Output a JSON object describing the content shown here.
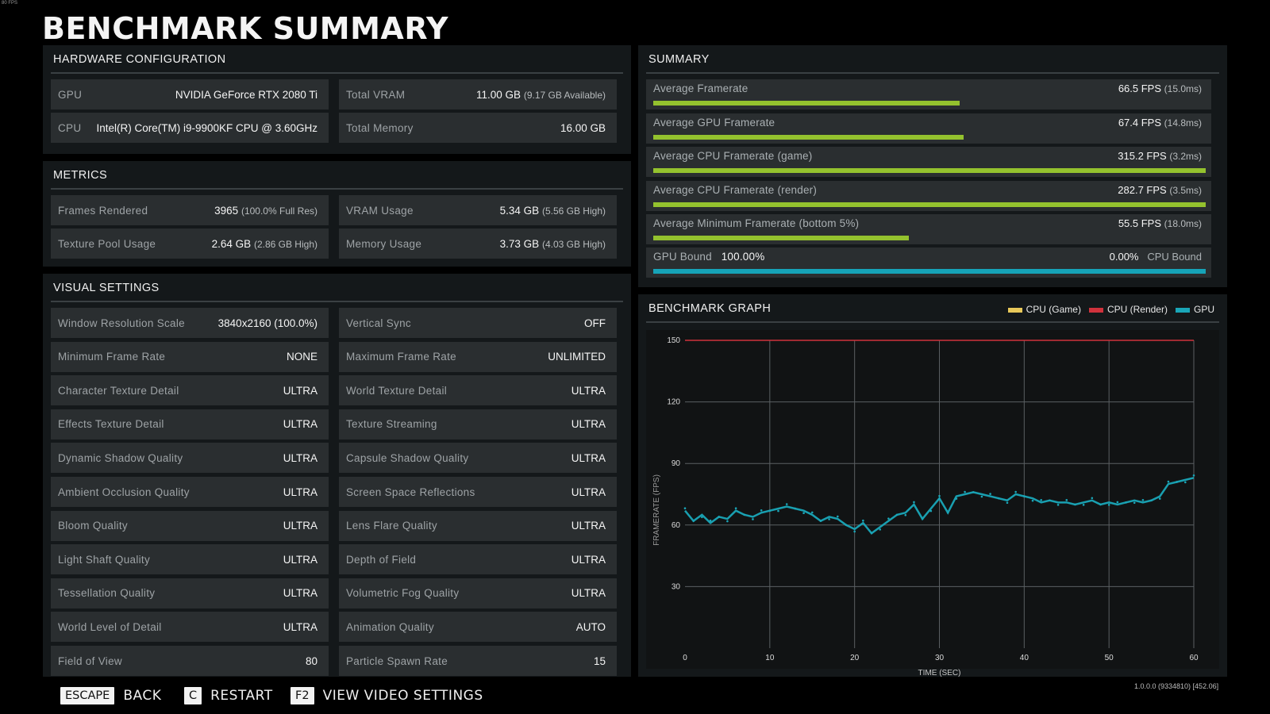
{
  "corner_fps": "80 FPS",
  "title": "BENCHMARK SUMMARY",
  "hardware": {
    "heading": "HARDWARE CONFIGURATION",
    "gpu": {
      "label": "GPU",
      "value": "NVIDIA GeForce RTX 2080 Ti"
    },
    "cpu": {
      "label": "CPU",
      "value": "Intel(R) Core(TM) i9-9900KF CPU @ 3.60GHz"
    },
    "vram": {
      "label": "Total VRAM",
      "value": "11.00 GB",
      "sub": "(9.17 GB Available)"
    },
    "memory": {
      "label": "Total Memory",
      "value": "16.00 GB"
    }
  },
  "metrics": {
    "heading": "METRICS",
    "frames": {
      "label": "Frames Rendered",
      "value": "3965",
      "sub": "(100.0% Full Res)"
    },
    "vram_usage": {
      "label": "VRAM Usage",
      "value": "5.34 GB",
      "sub": "(5.56 GB High)"
    },
    "texture_pool": {
      "label": "Texture Pool Usage",
      "value": "2.64 GB",
      "sub": "(2.86 GB High)"
    },
    "memory_usage": {
      "label": "Memory Usage",
      "value": "3.73 GB",
      "sub": "(4.03 GB High)"
    }
  },
  "visual": {
    "heading": "VISUAL SETTINGS",
    "left": [
      {
        "label": "Window Resolution Scale",
        "value": "3840x2160 (100.0%)"
      },
      {
        "label": "Minimum Frame Rate",
        "value": "NONE"
      },
      {
        "label": "Character Texture Detail",
        "value": "ULTRA"
      },
      {
        "label": "Effects Texture Detail",
        "value": "ULTRA"
      },
      {
        "label": "Dynamic Shadow Quality",
        "value": "ULTRA"
      },
      {
        "label": "Ambient Occlusion Quality",
        "value": "ULTRA"
      },
      {
        "label": "Bloom Quality",
        "value": "ULTRA"
      },
      {
        "label": "Light Shaft Quality",
        "value": "ULTRA"
      },
      {
        "label": "Tessellation Quality",
        "value": "ULTRA"
      },
      {
        "label": "World Level of Detail",
        "value": "ULTRA"
      },
      {
        "label": "Field of View",
        "value": "80"
      }
    ],
    "right": [
      {
        "label": "Vertical Sync",
        "value": "OFF"
      },
      {
        "label": "Maximum Frame Rate",
        "value": "UNLIMITED"
      },
      {
        "label": "World Texture Detail",
        "value": "ULTRA"
      },
      {
        "label": "Texture Streaming",
        "value": "ULTRA"
      },
      {
        "label": "Capsule Shadow Quality",
        "value": "ULTRA"
      },
      {
        "label": "Screen Space Reflections",
        "value": "ULTRA"
      },
      {
        "label": "Lens Flare Quality",
        "value": "ULTRA"
      },
      {
        "label": "Depth of Field",
        "value": "ULTRA"
      },
      {
        "label": "Volumetric Fog Quality",
        "value": "ULTRA"
      },
      {
        "label": "Animation Quality",
        "value": "AUTO"
      },
      {
        "label": "Particle Spawn Rate",
        "value": "15"
      }
    ]
  },
  "summary": {
    "heading": "SUMMARY",
    "rows": [
      {
        "label": "Average Framerate",
        "value": "66.5 FPS",
        "sub": "(15.0ms)",
        "fraction": 0.555
      },
      {
        "label": "Average GPU Framerate",
        "value": "67.4 FPS",
        "sub": "(14.8ms)",
        "fraction": 0.562
      },
      {
        "label": "Average CPU Framerate (game)",
        "value": "315.2 FPS",
        "sub": "(3.2ms)",
        "fraction": 1.0
      },
      {
        "label": "Average CPU Framerate (render)",
        "value": "282.7 FPS",
        "sub": "(3.5ms)",
        "fraction": 1.0
      },
      {
        "label": "Average Minimum Framerate (bottom 5%)",
        "value": "55.5 FPS",
        "sub": "(18.0ms)",
        "fraction": 0.463
      }
    ],
    "bound": {
      "gpu_label": "GPU Bound",
      "gpu_value": "100.00%",
      "cpu_value": "0.00%",
      "cpu_label": "CPU Bound",
      "gpu_fraction": 1.0
    },
    "bar_color": "#94c22e",
    "bound_color": "#16a3b8"
  },
  "graph": {
    "heading": "BENCHMARK GRAPH",
    "legend": [
      {
        "name": "CPU (Game)",
        "color": "#e8c85a"
      },
      {
        "name": "CPU (Render)",
        "color": "#d0323c"
      },
      {
        "name": "GPU",
        "color": "#1aa6b8"
      }
    ]
  },
  "chart_data": {
    "type": "scatter",
    "title": "",
    "xlabel": "TIME (SEC)",
    "ylabel": "FRAMERATE (FPS)",
    "xlim": [
      0,
      60
    ],
    "ylim": [
      0,
      150
    ],
    "xticks": [
      "0",
      "10",
      "20",
      "30",
      "40",
      "50",
      "60"
    ],
    "yticks": [
      "30",
      "60",
      "90",
      "120",
      "150"
    ],
    "grid": true,
    "legend_position": "top-right",
    "series": [
      {
        "name": "GPU",
        "color": "#1aa6b8",
        "x": [
          0,
          1,
          2,
          3,
          4,
          5,
          6,
          7,
          8,
          9,
          10,
          11,
          12,
          13,
          14,
          15,
          16,
          17,
          18,
          19,
          20,
          21,
          22,
          23,
          24,
          25,
          26,
          27,
          28,
          29,
          30,
          31,
          32,
          33,
          34,
          35,
          36,
          37,
          38,
          39,
          40,
          41,
          42,
          43,
          44,
          45,
          46,
          47,
          48,
          49,
          50,
          51,
          52,
          53,
          54,
          55,
          56,
          57,
          58,
          59,
          60
        ],
        "y": [
          67,
          62,
          65,
          61,
          64,
          63,
          67,
          65,
          64,
          66,
          67,
          68,
          69,
          68,
          67,
          65,
          62,
          64,
          63,
          60,
          58,
          61,
          56,
          59,
          62,
          65,
          66,
          70,
          63,
          68,
          73,
          66,
          74,
          75,
          76,
          75,
          74,
          73,
          72,
          75,
          74,
          73,
          71,
          72,
          71,
          71,
          70,
          71,
          72,
          70,
          71,
          70,
          71,
          72,
          71,
          72,
          74,
          80,
          81,
          82,
          83
        ]
      },
      {
        "name": "CPU (Render)",
        "color": "#d0323c",
        "x": [
          0,
          60
        ],
        "y": [
          150,
          150
        ]
      },
      {
        "name": "CPU (Game)",
        "color": "#e8c85a",
        "x": [],
        "y": []
      }
    ]
  },
  "footer": {
    "back": {
      "key": "ESCAPE",
      "label": "BACK"
    },
    "restart": {
      "key": "C",
      "label": "RESTART"
    },
    "video": {
      "key": "F2",
      "label": "VIEW VIDEO SETTINGS"
    },
    "version": "1.0.0.0 (9334810) [452.06]"
  }
}
